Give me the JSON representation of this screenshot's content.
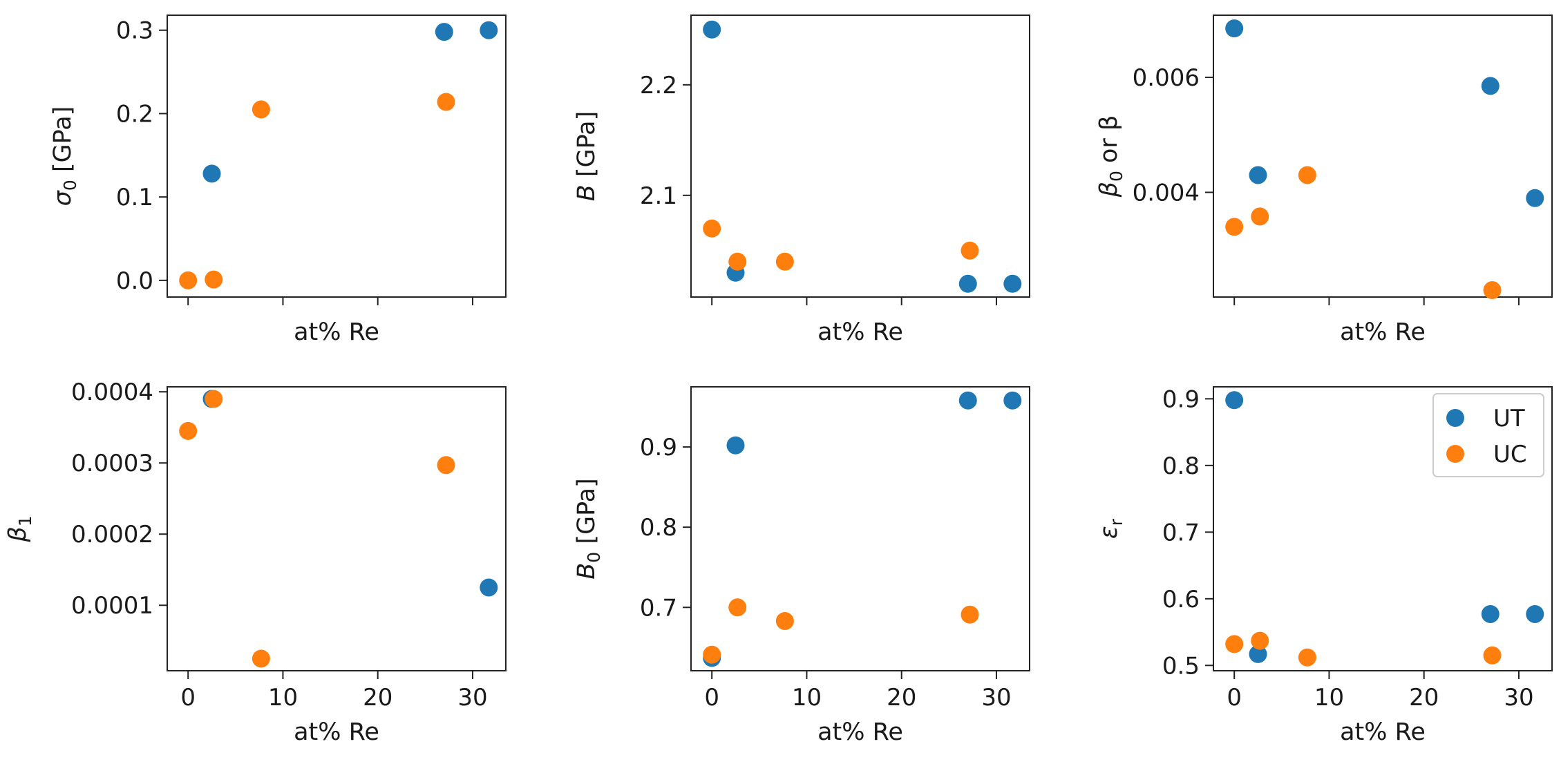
{
  "colors": {
    "UT": "#1f77b4",
    "UC": "#ff7f0e",
    "axis": "#222222"
  },
  "legend": {
    "location": "upper right of bottom-right panel",
    "entries": [
      "UT",
      "UC"
    ]
  },
  "chart_data": [
    {
      "type": "scatter",
      "xlabel": "at% Re",
      "ylabel": {
        "main": "σ",
        "sub": "0",
        "rest": " [GPa]"
      },
      "xlim": [
        -2.2,
        33.5
      ],
      "ylim": [
        -0.02,
        0.318
      ],
      "xticks": [
        0,
        10,
        20,
        30
      ],
      "xtick_labels_visible": false,
      "yticks": [
        0.0,
        0.1,
        0.2,
        0.3
      ],
      "ytick_labels": [
        "0.0",
        "0.1",
        "0.2",
        "0.3"
      ],
      "series": [
        {
          "name": "UT",
          "points": [
            [
              2.5,
              0.128
            ],
            [
              27.0,
              0.298
            ],
            [
              31.7,
              0.3
            ]
          ]
        },
        {
          "name": "UC",
          "points": [
            [
              0,
              0.0
            ],
            [
              2.7,
              0.001
            ],
            [
              7.7,
              0.205
            ],
            [
              27.2,
              0.214
            ]
          ]
        }
      ]
    },
    {
      "type": "scatter",
      "xlabel": "at% Re",
      "ylabel": {
        "main": "B",
        "sub": "",
        "rest": " [GPa]"
      },
      "xlim": [
        -2.2,
        33.5
      ],
      "ylim": [
        2.008,
        2.263
      ],
      "xticks": [
        0,
        10,
        20,
        30
      ],
      "xtick_labels_visible": false,
      "yticks": [
        2.1,
        2.2
      ],
      "ytick_labels": [
        "2.1",
        "2.2"
      ],
      "series": [
        {
          "name": "UT",
          "points": [
            [
              0,
              2.25
            ],
            [
              2.5,
              2.03
            ],
            [
              27.0,
              2.02
            ],
            [
              31.7,
              2.02
            ]
          ]
        },
        {
          "name": "UC",
          "points": [
            [
              0,
              2.07
            ],
            [
              2.7,
              2.04
            ],
            [
              7.7,
              2.04
            ],
            [
              27.2,
              2.05
            ]
          ]
        }
      ]
    },
    {
      "type": "scatter",
      "xlabel": "at% Re",
      "ylabel": {
        "main": "β",
        "sub": "0",
        "rest": " or β"
      },
      "xlim": [
        -2.2,
        33.5
      ],
      "ylim": [
        0.00218,
        0.00708
      ],
      "xticks": [
        0,
        10,
        20,
        30
      ],
      "xtick_labels_visible": false,
      "yticks": [
        0.004,
        0.006
      ],
      "ytick_labels": [
        "0.004",
        "0.006"
      ],
      "series": [
        {
          "name": "UT",
          "points": [
            [
              0,
              0.00685
            ],
            [
              2.5,
              0.0043
            ],
            [
              27.0,
              0.00585
            ],
            [
              31.7,
              0.0039
            ]
          ]
        },
        {
          "name": "UC",
          "points": [
            [
              0,
              0.0034
            ],
            [
              2.7,
              0.00358
            ],
            [
              7.7,
              0.0043
            ],
            [
              27.2,
              0.0023
            ]
          ]
        }
      ]
    },
    {
      "type": "scatter",
      "xlabel": "at% Re",
      "ylabel": {
        "main": "β",
        "sub": "1",
        "rest": ""
      },
      "xlim": [
        -2.2,
        33.5
      ],
      "ylim": [
        8e-06,
        0.000407
      ],
      "xticks": [
        0,
        10,
        20,
        30
      ],
      "xtick_labels_visible": true,
      "xtick_labels": [
        "0",
        "10",
        "20",
        "30"
      ],
      "yticks": [
        0.0001,
        0.0002,
        0.0003,
        0.0004
      ],
      "ytick_labels": [
        "0.0001",
        "0.0002",
        "0.0003",
        "0.0004"
      ],
      "series": [
        {
          "name": "UT",
          "points": [
            [
              2.5,
              0.00039
            ],
            [
              31.7,
              0.000125
            ]
          ]
        },
        {
          "name": "UC",
          "points": [
            [
              0,
              0.000345
            ],
            [
              2.7,
              0.00039
            ],
            [
              7.7,
              2.5e-05
            ],
            [
              27.2,
              0.000297
            ]
          ]
        }
      ]
    },
    {
      "type": "scatter",
      "xlabel": "at% Re",
      "ylabel": {
        "main": "B",
        "sub": "0",
        "rest": " [GPa]"
      },
      "xlim": [
        -2.2,
        33.5
      ],
      "ylim": [
        0.621,
        0.975
      ],
      "xticks": [
        0,
        10,
        20,
        30
      ],
      "xtick_labels_visible": true,
      "xtick_labels": [
        "0",
        "10",
        "20",
        "30"
      ],
      "yticks": [
        0.7,
        0.8,
        0.9
      ],
      "ytick_labels": [
        "0.7",
        "0.8",
        "0.9"
      ],
      "series": [
        {
          "name": "UT",
          "points": [
            [
              0,
              0.637
            ],
            [
              2.5,
              0.902
            ],
            [
              27.0,
              0.958
            ],
            [
              31.7,
              0.958
            ]
          ]
        },
        {
          "name": "UC",
          "points": [
            [
              0,
              0.641
            ],
            [
              2.7,
              0.7
            ],
            [
              7.7,
              0.683
            ],
            [
              27.2,
              0.691
            ]
          ]
        }
      ]
    },
    {
      "type": "scatter",
      "xlabel": "at% Re",
      "ylabel": {
        "main": "ε",
        "sub": "r",
        "rest": ""
      },
      "xlim": [
        -2.2,
        33.5
      ],
      "ylim": [
        0.492,
        0.918
      ],
      "xticks": [
        0,
        10,
        20,
        30
      ],
      "xtick_labels_visible": true,
      "xtick_labels": [
        "0",
        "10",
        "20",
        "30"
      ],
      "yticks": [
        0.5,
        0.6,
        0.7,
        0.8,
        0.9
      ],
      "ytick_labels": [
        "0.5",
        "0.6",
        "0.7",
        "0.8",
        "0.9"
      ],
      "series": [
        {
          "name": "UT",
          "points": [
            [
              0,
              0.898
            ],
            [
              2.5,
              0.517
            ],
            [
              27.0,
              0.577
            ],
            [
              31.7,
              0.577
            ]
          ]
        },
        {
          "name": "UC",
          "points": [
            [
              0,
              0.532
            ],
            [
              2.7,
              0.537
            ],
            [
              7.7,
              0.512
            ],
            [
              27.2,
              0.515
            ]
          ]
        }
      ]
    }
  ]
}
